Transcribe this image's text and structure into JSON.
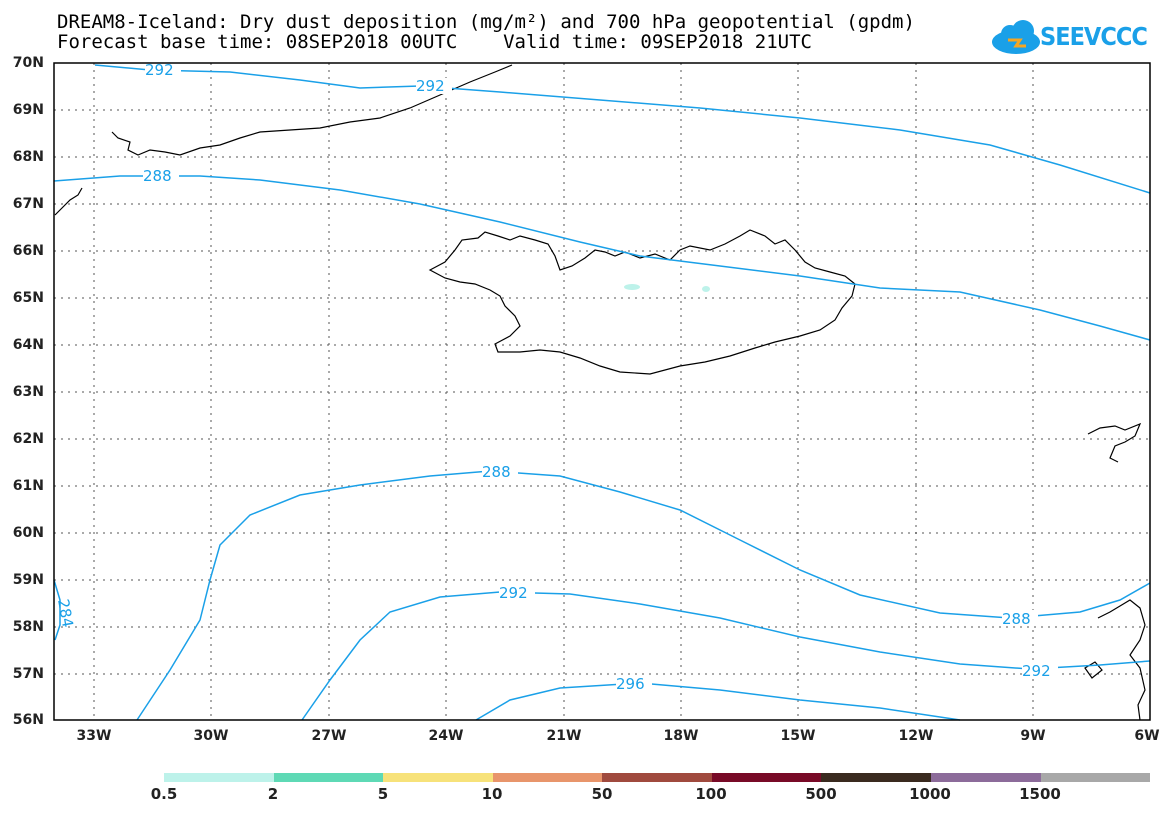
{
  "title": {
    "line1": "DREAM8-Iceland: Dry dust deposition (mg/m²) and 700 hPa geopotential (gpdm)",
    "line2": "Forecast base time: 08SEP2018 00UTC    Valid time: 09SEP2018 21UTC"
  },
  "logo": {
    "text": "SEEVCCC",
    "icon": "cloud-icon",
    "color": "#1aa0e8"
  },
  "map": {
    "lat_labels": [
      "70N",
      "69N",
      "68N",
      "67N",
      "66N",
      "65N",
      "64N",
      "63N",
      "62N",
      "61N",
      "60N",
      "59N",
      "58N",
      "57N",
      "56N"
    ],
    "lon_labels": [
      "33W",
      "30W",
      "27W",
      "24W",
      "21W",
      "18W",
      "15W",
      "12W",
      "9W",
      "6W"
    ],
    "contour_color": "#1aa0e8",
    "contour_labels": [
      "292",
      "292",
      "288",
      "288",
      "292",
      "288",
      "292",
      "296",
      "284"
    ]
  },
  "legend": {
    "labels": [
      "0.5",
      "2",
      "5",
      "10",
      "50",
      "100",
      "500",
      "1000",
      "1500"
    ],
    "colors": [
      "#bdf2ea",
      "#5ed9b5",
      "#f7e27a",
      "#e8956b",
      "#a04a3e",
      "#780a27",
      "#3a2a1f",
      "#8c6b9a",
      "#a8a8a8"
    ]
  }
}
